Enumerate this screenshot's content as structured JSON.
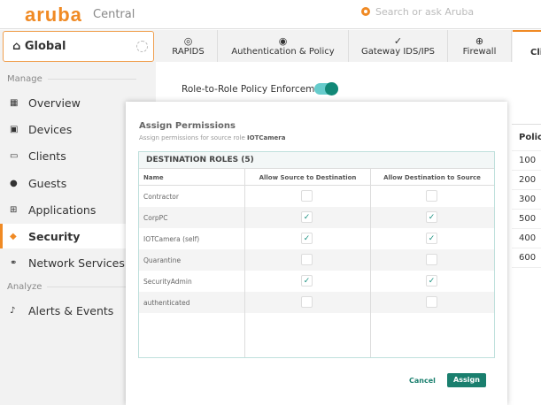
{
  "header": {
    "logo": "aruba",
    "product": "Central",
    "search_placeholder": "Search or ask Aruba"
  },
  "sidebar": {
    "scope": "Global",
    "manage_label": "Manage",
    "analyze_label": "Analyze",
    "items": [
      {
        "label": "Overview",
        "icon": "grid-icon"
      },
      {
        "label": "Devices",
        "icon": "devices-icon"
      },
      {
        "label": "Clients",
        "icon": "laptop-icon"
      },
      {
        "label": "Guests",
        "icon": "users-icon"
      },
      {
        "label": "Applications",
        "icon": "apps-icon"
      },
      {
        "label": "Security",
        "icon": "shield-icon",
        "active": true
      },
      {
        "label": "Network Services",
        "icon": "network-icon"
      }
    ],
    "analyze_items": [
      {
        "label": "Alerts & Events",
        "icon": "bell-icon"
      }
    ]
  },
  "tabs": [
    {
      "label": "RAPIDS"
    },
    {
      "label": "Authentication & Policy"
    },
    {
      "label": "Gateway IDS/IPS"
    },
    {
      "label": "Firewall"
    },
    {
      "label": "Cli",
      "active": true
    }
  ],
  "main": {
    "toggle_label": "Role-to-Role Policy Enforcement",
    "toggle_on": true,
    "policy_header": "Policy",
    "policy_values": [
      "100",
      "200",
      "300",
      "500",
      "400",
      "600"
    ]
  },
  "modal": {
    "title": "Assign Permissions",
    "subtitle": "Assign permissions for source role ",
    "source_role": "IOTCamera",
    "table_title": "DESTINATION ROLES (5)",
    "columns": [
      "Name",
      "Allow Source to Destination",
      "Allow Destination to Source"
    ],
    "rows": [
      {
        "name": "Contractor",
        "src_to_dst": false,
        "dst_to_src": false
      },
      {
        "name": "CorpPC",
        "src_to_dst": true,
        "dst_to_src": true
      },
      {
        "name": "IOTCamera (self)",
        "src_to_dst": true,
        "dst_to_src": true
      },
      {
        "name": "Quarantine",
        "src_to_dst": false,
        "dst_to_src": false
      },
      {
        "name": "SecurityAdmin",
        "src_to_dst": true,
        "dst_to_src": true
      },
      {
        "name": "authenticated",
        "src_to_dst": false,
        "dst_to_src": false
      }
    ],
    "cancel_label": "Cancel",
    "assign_label": "Assign"
  },
  "colors": {
    "brand": "#f08a24",
    "accent": "#1a7f6e"
  }
}
